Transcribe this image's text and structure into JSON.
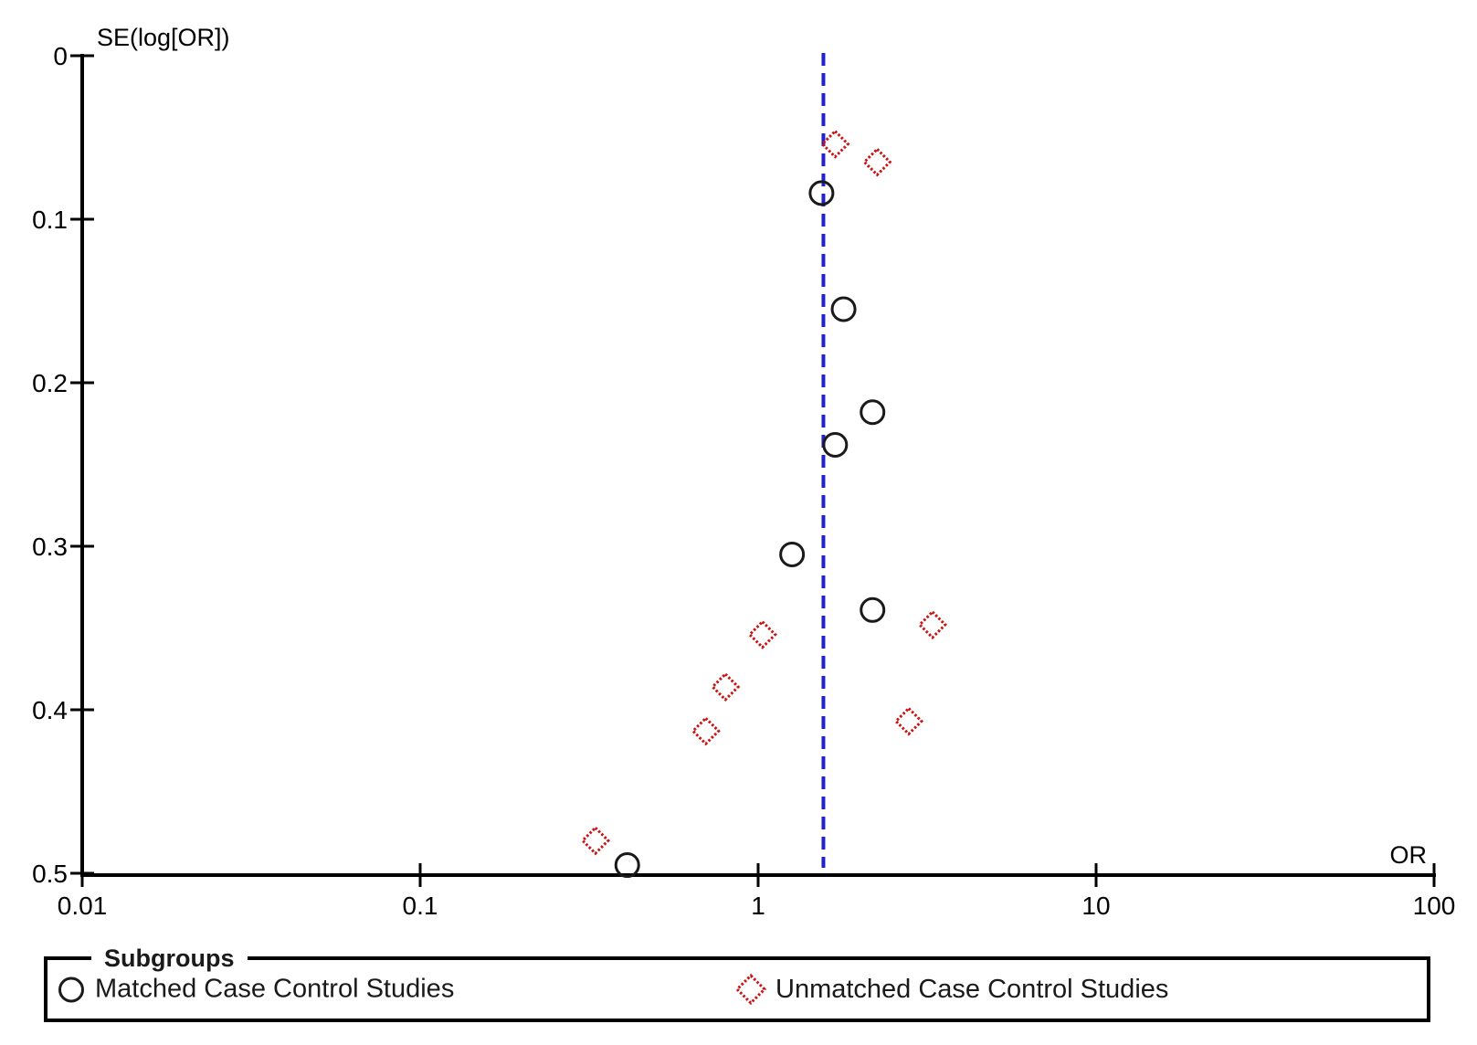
{
  "chart_data": {
    "type": "scatter",
    "subtype": "funnel_plot",
    "x_axis": {
      "label": "OR",
      "scale": "log",
      "range": [
        0.01,
        100
      ],
      "tick_values": [
        0.01,
        0.1,
        1,
        10,
        100
      ],
      "tick_labels": [
        "0.01",
        "0.1",
        "1",
        "10",
        "100"
      ]
    },
    "y_axis": {
      "label": "SE(log[OR])",
      "scale": "linear",
      "inverted": true,
      "range": [
        0,
        0.5
      ],
      "tick_values": [
        0,
        0.1,
        0.2,
        0.3,
        0.4,
        0.5
      ],
      "tick_labels": [
        "0",
        "0.1",
        "0.2",
        "0.3",
        "0.4",
        "0.5"
      ]
    },
    "reference_line": {
      "orientation": "vertical",
      "value": 1.56,
      "style": "dashed",
      "color": "#2222cc"
    },
    "series": [
      {
        "name": "Matched Case Control Studies",
        "marker": "circle",
        "color": "#1a1a1a",
        "points": [
          {
            "or": 1.54,
            "se": 0.084
          },
          {
            "or": 1.79,
            "se": 0.155
          },
          {
            "or": 2.18,
            "se": 0.218
          },
          {
            "or": 1.69,
            "se": 0.238
          },
          {
            "or": 1.26,
            "se": 0.305
          },
          {
            "or": 2.18,
            "se": 0.339
          },
          {
            "or": 0.41,
            "se": 0.495
          }
        ]
      },
      {
        "name": "Unmatched Case Control Studies",
        "marker": "diamond",
        "color": "#cc1111",
        "points": [
          {
            "or": 1.69,
            "se": 0.054
          },
          {
            "or": 2.25,
            "se": 0.065
          },
          {
            "or": 1.03,
            "se": 0.354
          },
          {
            "or": 0.8,
            "se": 0.386
          },
          {
            "or": 0.7,
            "se": 0.413
          },
          {
            "or": 3.28,
            "se": 0.348
          },
          {
            "or": 2.79,
            "se": 0.407
          },
          {
            "or": 0.33,
            "se": 0.48
          }
        ]
      }
    ],
    "grid": false,
    "legend_position": "bottom"
  },
  "legend": {
    "title": "Subgroups",
    "items": [
      {
        "label": "Matched Case Control Studies",
        "marker": "circle",
        "color": "#1a1a1a"
      },
      {
        "label": "Unmatched Case Control Studies",
        "marker": "diamond",
        "color": "#cc1111"
      }
    ]
  },
  "colors": {
    "axis": "#000000",
    "background": "#ffffff",
    "reference_line": "#2222cc"
  }
}
